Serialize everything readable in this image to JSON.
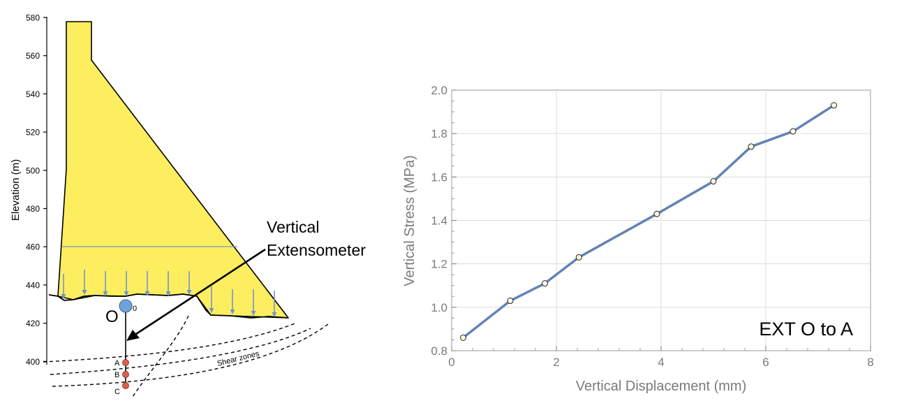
{
  "left_panel": {
    "ylabel": "Elevation (m)",
    "ylim": [
      390,
      580
    ],
    "yticks": [
      400,
      420,
      440,
      460,
      480,
      500,
      520,
      540,
      560,
      580
    ],
    "labels": {
      "point_o": "O",
      "point_o_sub": "0",
      "point_a": "A",
      "point_b": "B",
      "point_c": "C",
      "shear_zones": "Shear zones",
      "callout_line1": "Vertical",
      "callout_line2": "Extensometer"
    },
    "colors": {
      "dam": "#fcee5f",
      "arrows": "#6f97c9",
      "point_o": "#6fa3d9",
      "anchors": "#d9624c"
    }
  },
  "chart_data": {
    "type": "line",
    "title": "",
    "xlabel": "Vertical Displacement (mm)",
    "ylabel": "Vertical Stress (MPa)",
    "xlim": [
      0,
      8
    ],
    "ylim": [
      0.8,
      2.0
    ],
    "xticks": [
      0,
      2,
      4,
      6,
      8
    ],
    "yticks": [
      0.8,
      1.0,
      1.2,
      1.4,
      1.6,
      1.8,
      2.0
    ],
    "grid": true,
    "annotation": "EXT O to A",
    "series": [
      {
        "color": "#6383b4",
        "x": [
          0.22,
          1.12,
          1.78,
          2.43,
          3.92,
          5.0,
          5.72,
          6.52,
          7.3
        ],
        "y": [
          0.86,
          1.03,
          1.11,
          1.23,
          1.43,
          1.58,
          1.74,
          1.81,
          1.93
        ]
      }
    ]
  }
}
